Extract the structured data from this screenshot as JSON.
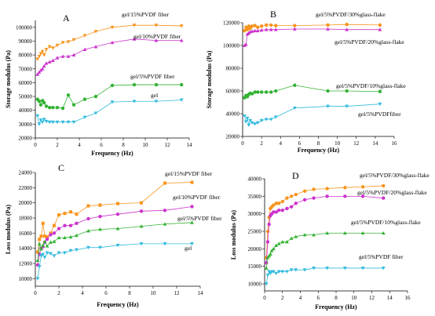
{
  "chart_data": [
    {
      "type": "line",
      "panel": "A",
      "xlabel": "Frequency (Hz)",
      "ylabel": "Storage modulus (Pa)",
      "xlim": [
        0,
        14
      ],
      "ylim": [
        20000,
        105000
      ],
      "xticks": [
        0,
        2,
        4,
        6,
        8,
        10,
        12,
        14
      ],
      "yticks": [
        20000,
        30000,
        40000,
        50000,
        60000,
        70000,
        80000,
        90000,
        100000
      ],
      "series": [
        {
          "name": "gel/15%PVDF fiber",
          "color": "#f7941d",
          "marker": "triangle-down",
          "x": [
            0.2,
            0.35,
            0.5,
            0.65,
            0.8,
            1.0,
            1.3,
            1.6,
            2.0,
            2.5,
            3.0,
            3.5,
            4.5,
            5.5,
            7.0,
            9.0,
            11.0,
            13.3
          ],
          "y": [
            77000,
            79000,
            81000,
            82500,
            80000,
            84000,
            86000,
            85000,
            87000,
            89000,
            89500,
            91000,
            94000,
            97000,
            100000,
            101500,
            101500,
            101000
          ]
        },
        {
          "name": "gel/10%PVDF fiber",
          "color": "#cc33cc",
          "marker": "triangle-up",
          "x": [
            0.2,
            0.35,
            0.5,
            0.65,
            0.8,
            1.0,
            1.3,
            1.6,
            2.0,
            2.5,
            3.0,
            3.5,
            4.5,
            5.5,
            7.0,
            9.0,
            11.0,
            13.3
          ],
          "y": [
            66000,
            67500,
            69000,
            70000,
            72000,
            74000,
            75000,
            76000,
            78000,
            79000,
            79000,
            80000,
            84000,
            86000,
            89000,
            91500,
            90500,
            90500
          ]
        },
        {
          "name": "gel/5%PVDF fiber",
          "color": "#33b233",
          "marker": "circle",
          "x": [
            0.2,
            0.35,
            0.5,
            0.65,
            0.8,
            1.0,
            1.3,
            1.6,
            2.0,
            2.5,
            3.0,
            3.5,
            4.5,
            5.5,
            7.0,
            9.0,
            11.0,
            13.3
          ],
          "y": [
            48000,
            46500,
            44000,
            47000,
            45500,
            43000,
            42000,
            42000,
            42000,
            41500,
            51000,
            44000,
            48000,
            50000,
            58000,
            58500,
            58500,
            58500
          ]
        },
        {
          "name": "gel",
          "color": "#33bbdd",
          "marker": "triangle-down",
          "x": [
            0.2,
            0.35,
            0.5,
            0.65,
            0.8,
            1.0,
            1.3,
            1.6,
            2.0,
            2.5,
            3.0,
            3.5,
            4.5,
            5.5,
            7.0,
            9.0,
            11.0,
            13.3
          ],
          "y": [
            36000,
            30000,
            33000,
            31500,
            33500,
            32000,
            31500,
            31500,
            31500,
            31500,
            31500,
            31500,
            35000,
            38000,
            46000,
            46500,
            46500,
            47500
          ]
        }
      ]
    },
    {
      "type": "line",
      "panel": "B",
      "xlabel": "Frequency (Hz)",
      "ylabel": "Storage modulus (Pa)",
      "xlim": [
        0,
        16
      ],
      "ylim": [
        20000,
        120000
      ],
      "xticks": [
        0,
        2,
        4,
        6,
        8,
        10,
        12,
        14,
        16
      ],
      "yticks": [
        20000,
        40000,
        60000,
        80000,
        100000,
        120000
      ],
      "series": [
        {
          "name": "gel/5%PVDF/30%glass-flake",
          "color": "#f7941d",
          "marker": "circle",
          "x": [
            0.2,
            0.35,
            0.5,
            0.65,
            0.8,
            1.0,
            1.3,
            1.6,
            2.0,
            2.5,
            3.0,
            3.5,
            5.5,
            9.0,
            11.0,
            14.5
          ],
          "y": [
            113000,
            116000,
            114000,
            117000,
            115000,
            117000,
            117500,
            116000,
            117000,
            118000,
            118000,
            117500,
            117500,
            118000,
            118500,
            118000
          ]
        },
        {
          "name": "gel/5%PVDF/20%glass-flake",
          "color": "#cc33cc",
          "marker": "triangle-up",
          "x": [
            0.2,
            0.35,
            0.5,
            0.65,
            0.8,
            1.0,
            1.3,
            1.6,
            2.0,
            2.5,
            3.0,
            3.5,
            5.5,
            9.0,
            11.0,
            14.5
          ],
          "y": [
            100000,
            101000,
            110000,
            111000,
            112000,
            112500,
            113000,
            113000,
            113500,
            114000,
            114000,
            114000,
            114500,
            114500,
            114000,
            114000
          ]
        },
        {
          "name": "gel/5%PVDF/10%glass-flake",
          "color": "#33b233",
          "marker": "circle",
          "x": [
            0.2,
            0.35,
            0.5,
            0.65,
            0.8,
            1.0,
            1.3,
            1.6,
            2.0,
            2.5,
            3.0,
            3.5,
            5.5,
            9.0,
            11.0,
            14.5
          ],
          "y": [
            54000,
            56000,
            55000,
            57000,
            58000,
            57500,
            59000,
            59000,
            59000,
            59000,
            59000,
            60000,
            65000,
            60000,
            60000,
            59500
          ]
        },
        {
          "name": "gel/5%PVDFfiber",
          "color": "#33bbdd",
          "marker": "triangle-down",
          "x": [
            0.2,
            0.35,
            0.5,
            0.65,
            0.8,
            1.0,
            1.3,
            1.6,
            2.0,
            2.5,
            3.0,
            3.5,
            5.5,
            9.0,
            11.0,
            14.5
          ],
          "y": [
            38000,
            33000,
            36000,
            30000,
            34000,
            32000,
            31000,
            32000,
            34000,
            35000,
            35000,
            37000,
            45000,
            46500,
            46500,
            48500
          ]
        }
      ]
    },
    {
      "type": "line",
      "panel": "C",
      "xlabel": "Frequency (Hz)",
      "ylabel": "Loss modulus (Pa)",
      "xlim": [
        0,
        14
      ],
      "ylim": [
        9000,
        24000
      ],
      "xticks": [
        0,
        2,
        4,
        6,
        8,
        10,
        12,
        14
      ],
      "yticks": [
        10000,
        12000,
        14000,
        16000,
        18000,
        20000,
        22000,
        24000
      ],
      "series": [
        {
          "name": "gel/15%PVDF fiber",
          "color": "#f7941d",
          "marker": "square",
          "x": [
            0.2,
            0.35,
            0.5,
            0.65,
            0.8,
            1.0,
            1.3,
            1.6,
            2.0,
            2.5,
            3.0,
            3.5,
            4.5,
            5.5,
            7.0,
            9.0,
            11.0,
            13.3
          ],
          "y": [
            13500,
            15200,
            15600,
            17300,
            15600,
            15500,
            16000,
            17000,
            18400,
            18600,
            18800,
            18500,
            19600,
            19700,
            19900,
            20000,
            22600,
            22700
          ]
        },
        {
          "name": "gel/10%PVDF fiber",
          "color": "#cc33cc",
          "marker": "circle",
          "x": [
            0.2,
            0.35,
            0.5,
            0.65,
            0.8,
            1.0,
            1.3,
            1.6,
            2.0,
            2.5,
            3.0,
            3.5,
            4.5,
            5.5,
            7.0,
            9.0,
            11.0,
            13.3
          ],
          "y": [
            11800,
            13200,
            14000,
            14200,
            14800,
            15200,
            15800,
            16000,
            16600,
            17000,
            17000,
            17300,
            17900,
            18200,
            18500,
            18900,
            19000,
            19500
          ]
        },
        {
          "name": "gel/5%PVDF fiber",
          "color": "#33b233",
          "marker": "triangle-up",
          "x": [
            0.2,
            0.35,
            0.5,
            0.65,
            0.8,
            1.0,
            1.3,
            1.6,
            2.0,
            2.5,
            3.0,
            3.5,
            4.5,
            5.5,
            7.0,
            9.0,
            11.0,
            13.3
          ],
          "y": [
            12400,
            14600,
            13900,
            14400,
            14900,
            14300,
            14800,
            14900,
            15400,
            15400,
            15500,
            15700,
            16300,
            16500,
            16600,
            16900,
            17200,
            17400
          ]
        },
        {
          "name": "gel",
          "color": "#33bbdd",
          "marker": "triangle-down",
          "x": [
            0.2,
            0.35,
            0.5,
            0.65,
            0.8,
            1.0,
            1.3,
            1.6,
            2.0,
            2.5,
            3.0,
            3.5,
            4.5,
            5.5,
            7.0,
            9.0,
            11.0,
            13.3
          ],
          "y": [
            10000,
            11600,
            13000,
            13200,
            12800,
            13400,
            13300,
            13000,
            13400,
            13400,
            13700,
            13800,
            14100,
            14100,
            14400,
            14600,
            14600,
            14600
          ]
        }
      ]
    },
    {
      "type": "line",
      "panel": "D",
      "xlabel": "Frequency (Hz)",
      "ylabel": "Loss modulus (Pa)",
      "xlim": [
        0,
        16
      ],
      "ylim": [
        8000,
        40000
      ],
      "xticks": [
        0,
        2,
        4,
        6,
        8,
        10,
        12,
        14,
        16
      ],
      "yticks": [
        10000,
        15000,
        20000,
        25000,
        30000,
        35000,
        40000
      ],
      "series": [
        {
          "name": "gel/5%PVDF/30%glass-flake",
          "color": "#f7941d",
          "marker": "circle",
          "x": [
            0.2,
            0.35,
            0.5,
            0.65,
            0.8,
            1.0,
            1.3,
            1.6,
            2.0,
            2.5,
            3.0,
            3.5,
            4.5,
            5.5,
            7.0,
            9.0,
            11.0,
            13.3
          ],
          "y": [
            17500,
            25000,
            29000,
            31500,
            32000,
            32500,
            33000,
            33000,
            33500,
            34500,
            35000,
            35500,
            36500,
            37000,
            37200,
            37500,
            37700,
            38000
          ]
        },
        {
          "name": "gel/5%PVDF/20%glass-flake",
          "color": "#cc33cc",
          "marker": "circle",
          "x": [
            0.2,
            0.35,
            0.5,
            0.65,
            0.8,
            1.0,
            1.3,
            1.6,
            2.0,
            2.5,
            3.0,
            3.5,
            4.5,
            5.5,
            7.0,
            9.0,
            11.0,
            13.3
          ],
          "y": [
            16000,
            22000,
            27000,
            29500,
            30000,
            30500,
            30500,
            31000,
            31000,
            31500,
            32000,
            33000,
            34000,
            34500,
            35000,
            35000,
            35000,
            34500
          ]
        },
        {
          "name": "gel/5%PVDF/10%glass-flake",
          "color": "#33b233",
          "marker": "triangle-up",
          "x": [
            0.2,
            0.35,
            0.5,
            0.65,
            0.8,
            1.0,
            1.3,
            1.6,
            2.0,
            2.5,
            3.0,
            3.5,
            4.5,
            5.5,
            7.0,
            9.0,
            11.0,
            13.3
          ],
          "y": [
            14500,
            17500,
            18000,
            18500,
            19500,
            20000,
            21000,
            21500,
            22000,
            22000,
            23000,
            23500,
            24000,
            24000,
            24500,
            24500,
            24500,
            24500
          ]
        },
        {
          "name": "gel/5%PVDF fiber",
          "color": "#33bbdd",
          "marker": "triangle-down",
          "x": [
            0.2,
            0.35,
            0.5,
            0.65,
            0.8,
            1.0,
            1.3,
            1.6,
            2.0,
            2.5,
            3.0,
            3.5,
            4.5,
            5.5,
            7.0,
            9.0,
            11.0,
            13.3
          ],
          "y": [
            10000,
            12500,
            13500,
            13000,
            13500,
            13500,
            13000,
            13500,
            13500,
            13500,
            14000,
            14000,
            14000,
            14500,
            14500,
            14500,
            14500,
            14500
          ]
        }
      ]
    }
  ]
}
